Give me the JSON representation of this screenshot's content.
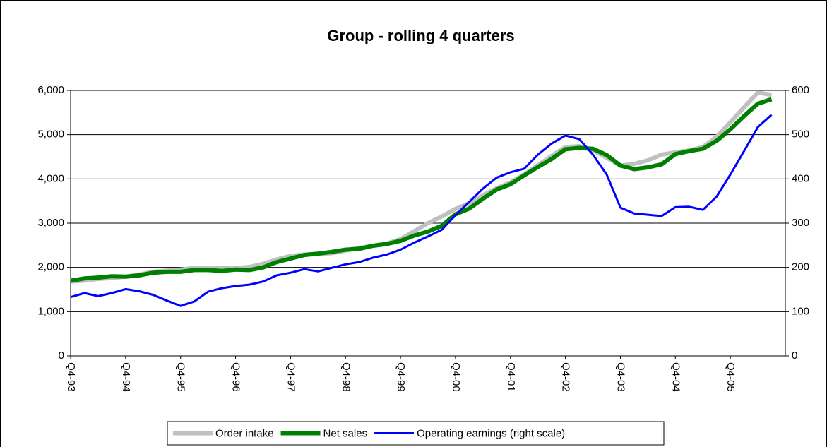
{
  "chart_data": {
    "type": "line",
    "title": "Group - rolling 4 quarters",
    "categories": [
      "Q4-93",
      null,
      null,
      null,
      "Q4-94",
      null,
      null,
      null,
      "Q4-95",
      null,
      null,
      null,
      "Q4-96",
      null,
      null,
      null,
      "Q4-97",
      null,
      null,
      null,
      "Q4-98",
      null,
      null,
      null,
      "Q4-99",
      null,
      null,
      null,
      "Q4-00",
      null,
      null,
      null,
      "Q4-01",
      null,
      null,
      null,
      "Q4-02",
      null,
      null,
      null,
      "Q4-03",
      null,
      null,
      null,
      "Q4-04",
      null,
      null,
      null,
      "Q4-05",
      null,
      null,
      null
    ],
    "series": [
      {
        "name": "Order intake",
        "color": "#c0c0c0",
        "width": 6,
        "values": [
          1680,
          1700,
          1740,
          1760,
          1790,
          1840,
          1900,
          1930,
          1950,
          1990,
          1990,
          1980,
          1980,
          2010,
          2080,
          2180,
          2260,
          2290,
          2310,
          2320,
          2380,
          2440,
          2490,
          2540,
          2640,
          2820,
          3000,
          3150,
          3320,
          3450,
          3630,
          3790,
          3920,
          4100,
          4310,
          4520,
          4720,
          4740,
          4650,
          4480,
          4300,
          4340,
          4420,
          4550,
          4600,
          4640,
          4720,
          4950,
          5280,
          5620,
          5950,
          5900
        ]
      },
      {
        "name": "Net sales",
        "color": "#008000",
        "width": 6,
        "values": [
          1700,
          1750,
          1770,
          1800,
          1790,
          1820,
          1880,
          1900,
          1900,
          1940,
          1940,
          1920,
          1950,
          1940,
          2000,
          2120,
          2200,
          2280,
          2310,
          2350,
          2400,
          2420,
          2490,
          2530,
          2600,
          2720,
          2810,
          2940,
          3200,
          3330,
          3550,
          3760,
          3880,
          4080,
          4270,
          4450,
          4670,
          4700,
          4680,
          4540,
          4300,
          4220,
          4260,
          4330,
          4560,
          4630,
          4680,
          4860,
          5120,
          5420,
          5700,
          5800
        ]
      },
      {
        "name": "Operating earnings (right scale)",
        "color": "#0000ff",
        "width": 3,
        "axis": "y2",
        "values": [
          133,
          142,
          135,
          142,
          151,
          146,
          138,
          125,
          113,
          123,
          145,
          153,
          158,
          161,
          168,
          182,
          188,
          196,
          191,
          199,
          207,
          212,
          222,
          229,
          240,
          256,
          270,
          285,
          318,
          348,
          378,
          403,
          415,
          423,
          455,
          480,
          498,
          490,
          455,
          410,
          335,
          322,
          319,
          316,
          336,
          337,
          330,
          360,
          410,
          463,
          517,
          545
        ]
      }
    ],
    "ylim": [
      0,
      6000
    ],
    "yticks": [
      0,
      {
        "value": 1000,
        "label": "1,000"
      },
      {
        "value": 2000,
        "label": "2,000"
      },
      {
        "value": 3000,
        "label": "3,000"
      },
      {
        "value": 4000,
        "label": "4,000"
      },
      {
        "value": 5000,
        "label": "5,000"
      },
      {
        "value": 6000,
        "label": "6,000"
      }
    ],
    "y2lim": [
      0,
      600
    ],
    "y2ticks": [
      0,
      100,
      200,
      300,
      400,
      500,
      600
    ],
    "grid": true,
    "legend": "bottom"
  }
}
